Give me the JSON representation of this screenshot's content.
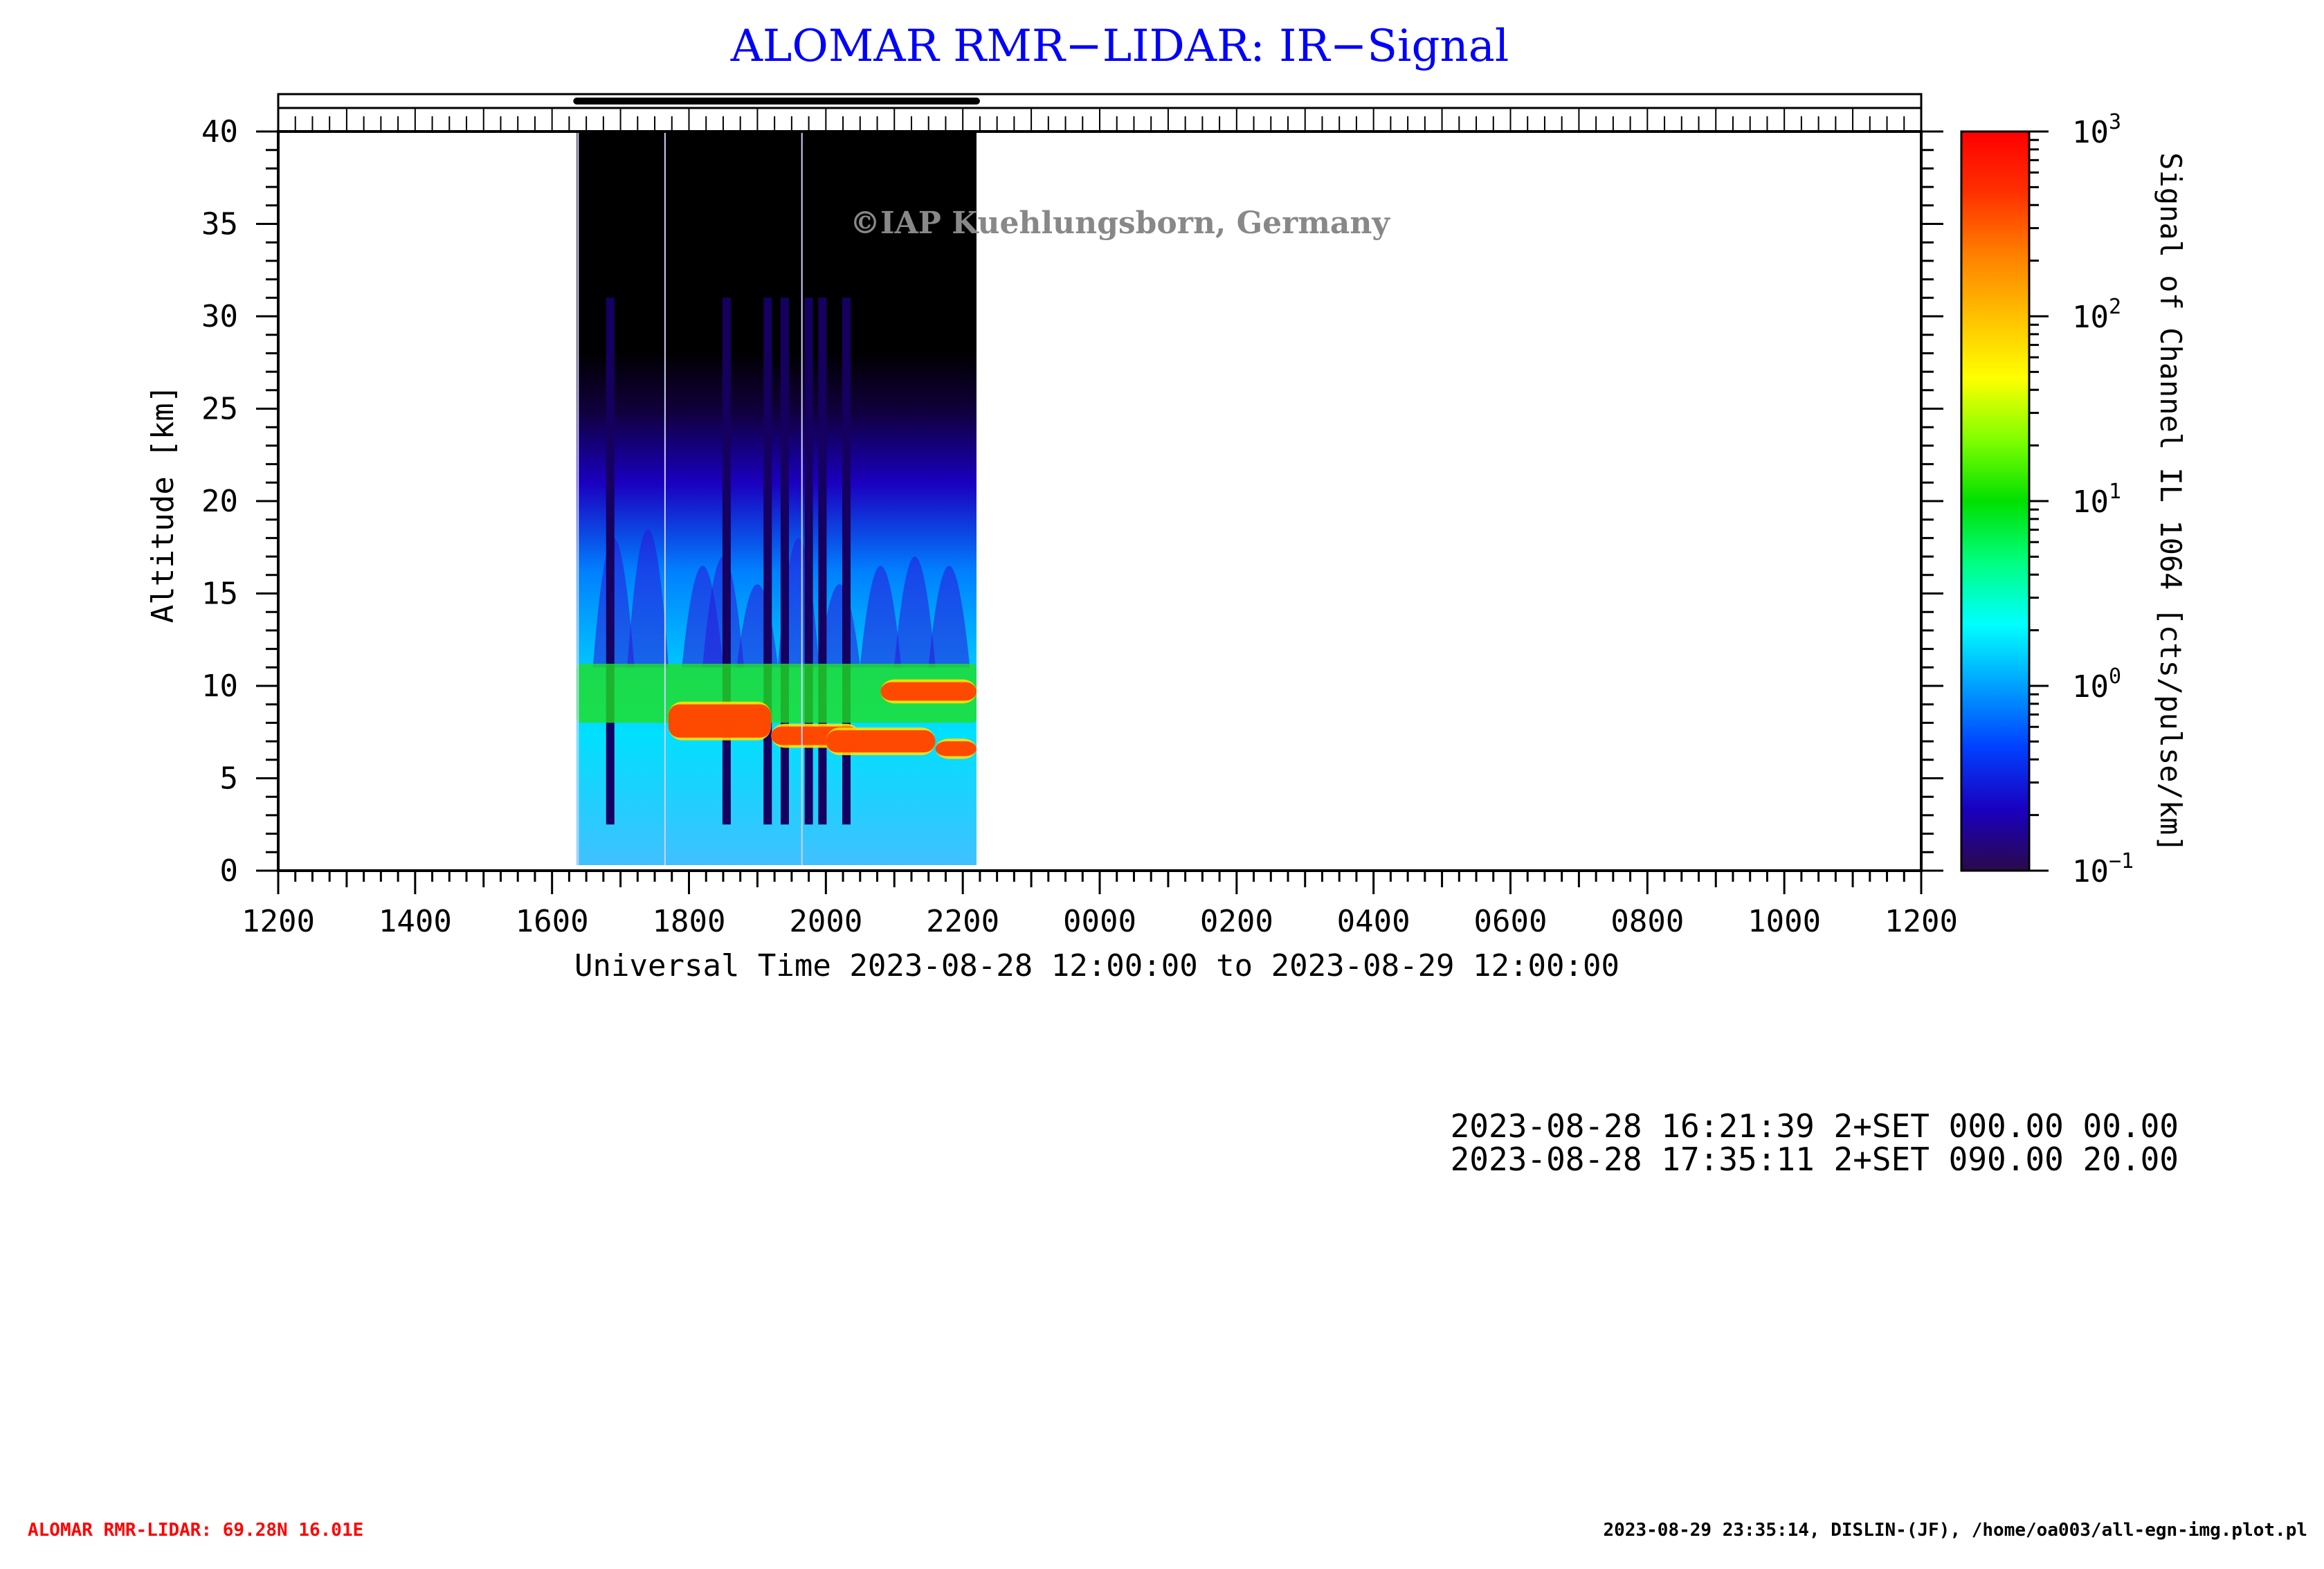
{
  "chart_data": {
    "type": "heatmap",
    "title": "ALOMAR RMR−LIDAR: IR−Signal",
    "watermark": "©IAP Kuehlungsborn, Germany",
    "xlabel": "Universal Time 2023-08-28 12:00:00 to 2023-08-29 12:00:00",
    "ylabel": "Altitude [km]",
    "colorbar_label": "Signal of Channel IL 1064 [cts/pulse/km]",
    "x_tick_labels": [
      "1200",
      "1400",
      "1600",
      "1800",
      "2000",
      "2200",
      "0000",
      "0200",
      "0400",
      "0600",
      "0800",
      "1000",
      "1200"
    ],
    "x_range_hours": [
      12,
      36
    ],
    "ylim": [
      0,
      40
    ],
    "y_ticks": [
      0,
      5,
      10,
      15,
      20,
      25,
      30,
      35,
      40
    ],
    "colorbar_scale": "log",
    "colorbar_range": [
      0.1,
      1000
    ],
    "colorbar_tick_exponents": [
      "-1",
      "0",
      "1",
      "2",
      "3"
    ],
    "colormap": [
      "#2a0a4a",
      "#1a00c0",
      "#0040ff",
      "#00a0ff",
      "#00ffff",
      "#00ff80",
      "#00e000",
      "#80ff00",
      "#ffff00",
      "#ffc000",
      "#ff8000",
      "#ff3000",
      "#ff0000"
    ],
    "measurement_window_hours": [
      16.36,
      22.2
    ],
    "profiles_note": "backscatter profiles with cloud layers near 7-11 km",
    "cloud_layer_km": [
      {
        "t_start": 16.36,
        "t_end": 22.2,
        "alt_bottom": 8.0,
        "alt_top": 11.2,
        "level": "green"
      },
      {
        "t_start": 17.7,
        "t_end": 19.2,
        "alt_bottom": 7.2,
        "alt_top": 9.0,
        "level": "red"
      },
      {
        "t_start": 19.2,
        "t_end": 20.5,
        "alt_bottom": 6.8,
        "alt_top": 7.8,
        "level": "red"
      },
      {
        "t_start": 20.0,
        "t_end": 21.6,
        "alt_bottom": 6.4,
        "alt_top": 7.6,
        "level": "red"
      },
      {
        "t_start": 21.6,
        "t_end": 22.2,
        "alt_bottom": 6.2,
        "alt_top": 7.0,
        "level": "red"
      },
      {
        "t_start": 20.8,
        "t_end": 22.2,
        "alt_bottom": 9.2,
        "alt_top": 10.2,
        "level": "red"
      }
    ]
  },
  "info_lines": [
    "2023-08-28 16:21:39 2+SET 000.00 00.00",
    "2023-08-28 17:35:11 2+SET 090.00 20.00"
  ],
  "footer": {
    "left": "ALOMAR RMR-LIDAR: 69.28N 16.01E",
    "right": "2023-08-29 23:35:14, DISLIN-(JF), /home/oa003/all-egn-img.plot.pl"
  },
  "colors": {
    "title": "#0000ff",
    "footer_left": "#ff0000",
    "watermark": "#888888"
  }
}
